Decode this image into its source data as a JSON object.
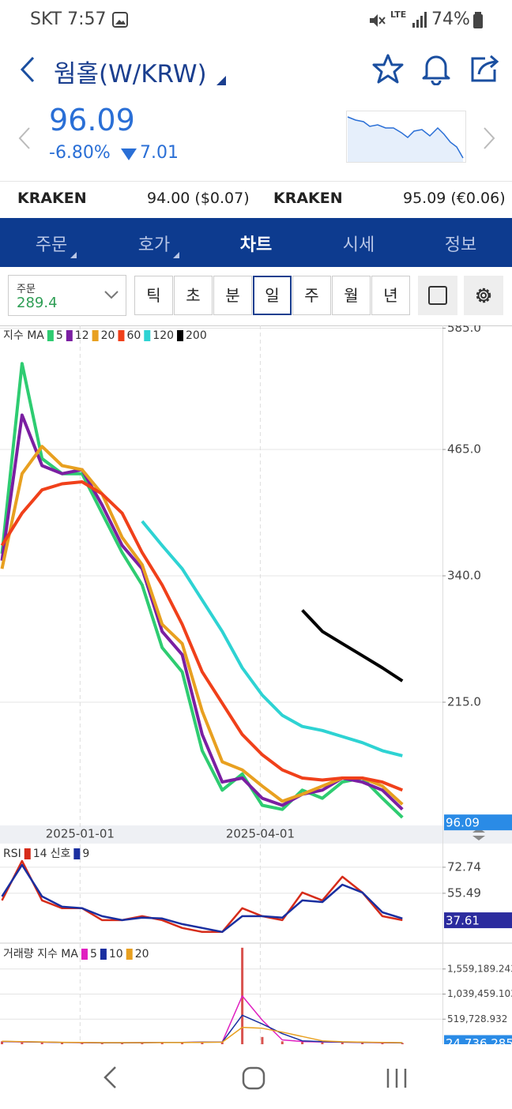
{
  "status_bar": {
    "carrier_time": "SKT 7:57",
    "network": "LTE",
    "battery": "74%"
  },
  "header": {
    "title": "웜홀(W/KRW)"
  },
  "quote": {
    "price": "96.09",
    "change_pct": "-6.80%",
    "change": "7.01"
  },
  "exchanges": [
    {
      "name": "KRAKEN",
      "price": "94.00 ($0.07)"
    },
    {
      "name": "KRAKEN",
      "price": "95.09 (€0.06)"
    }
  ],
  "tabs": [
    "주문",
    "호가",
    "차트",
    "시세",
    "정보"
  ],
  "toolbar": {
    "dropdown_label": "주문",
    "dropdown_value": "289.4",
    "periods": [
      "틱",
      "초",
      "분",
      "일",
      "주",
      "월",
      "년"
    ]
  },
  "chart_data": [
    {
      "type": "line",
      "title": "지수 MA",
      "x": [
        "2024-11-23",
        "2024-12-03",
        "2024-12-13",
        "2024-12-23",
        "2025-01-02",
        "2025-01-12",
        "2025-01-22",
        "2025-02-01",
        "2025-02-11",
        "2025-02-21",
        "2025-03-03",
        "2025-03-13",
        "2025-03-23",
        "2025-04-02",
        "2025-04-12",
        "2025-04-22",
        "2025-05-02",
        "2025-05-12",
        "2025-05-22",
        "2025-06-01",
        "2025-06-11"
      ],
      "xlim": [
        "2024-11-22",
        "2025-07-01"
      ],
      "xticks": [
        "2025-01-01",
        "2025-04-01"
      ],
      "ylim": [
        93.1,
        587.7
      ],
      "yticks": [
        {
          "value": 585,
          "label": "585.0"
        },
        {
          "value": 465,
          "label": "465.0"
        },
        {
          "value": 340,
          "label": "340.0"
        },
        {
          "value": 215,
          "label": "215.0"
        }
      ],
      "current_value": 96.09,
      "grid": true,
      "series": [
        {
          "name": "5",
          "color": "#2ecc71",
          "values": [
            362,
            550,
            456,
            441,
            441,
            402,
            363,
            331,
            269,
            245,
            167,
            128,
            144,
            113,
            109,
            128,
            120,
            136,
            140,
            120,
            101
          ]
        },
        {
          "name": "12",
          "color": "#7b1fa2",
          "values": [
            355,
            499,
            449,
            441,
            445,
            410,
            370,
            347,
            285,
            262,
            183,
            136,
            140,
            120,
            113,
            124,
            128,
            140,
            136,
            128,
            109
          ]
        },
        {
          "name": "20",
          "color": "#e8a020",
          "values": [
            347,
            441,
            468,
            449,
            445,
            421,
            378,
            351,
            292,
            273,
            206,
            156,
            148,
            132,
            117,
            124,
            132,
            140,
            140,
            132,
            114
          ]
        },
        {
          "name": "60",
          "color": "#f0401a",
          "values": [
            370,
            402,
            425,
            431,
            433,
            421,
            402,
            363,
            331,
            292,
            245,
            214,
            183,
            163,
            148,
            140,
            138,
            140,
            140,
            136,
            128
          ]
        },
        {
          "name": "120",
          "color": "#2ed3d3",
          "values": [
            null,
            null,
            null,
            null,
            null,
            null,
            null,
            394,
            370,
            347,
            316,
            285,
            249,
            222,
            202,
            191,
            187,
            181,
            175,
            167,
            162
          ]
        },
        {
          "name": "200",
          "color": "#000000",
          "values": [
            null,
            null,
            null,
            null,
            null,
            null,
            null,
            null,
            null,
            null,
            null,
            null,
            null,
            null,
            null,
            306,
            285,
            273,
            261,
            249,
            236
          ]
        }
      ]
    },
    {
      "type": "line",
      "x": [
        "2024-11-23",
        "2024-12-03",
        "2024-12-13",
        "2024-12-23",
        "2025-01-02",
        "2025-01-12",
        "2025-01-22",
        "2025-02-01",
        "2025-02-11",
        "2025-02-21",
        "2025-03-03",
        "2025-03-13",
        "2025-03-23",
        "2025-04-02",
        "2025-04-12",
        "2025-04-22",
        "2025-05-02",
        "2025-05-12",
        "2025-05-22",
        "2025-06-01",
        "2025-06-11"
      ],
      "xlim": [
        "2024-11-22",
        "2025-07-01"
      ],
      "ylim": [
        23,
        88.4
      ],
      "yticks": [
        72.74,
        55.49
      ],
      "current_value": 37.61,
      "grid": true,
      "series": [
        {
          "label": "RSI",
          "name": "14",
          "color": "#d62c1a",
          "values": [
            50.8,
            76.9,
            50.8,
            45.6,
            45.6,
            37.7,
            37.7,
            40.3,
            37.7,
            32.5,
            29.9,
            29.9,
            45.6,
            40.3,
            37.7,
            56,
            50.8,
            66.5,
            56,
            40.3,
            37.7
          ]
        },
        {
          "label": "신호",
          "name": "9",
          "color": "#1a2fa0",
          "values": [
            53.4,
            74.3,
            53.4,
            46.6,
            45.6,
            40.3,
            37.7,
            39.3,
            38.8,
            35.1,
            32.5,
            29.9,
            40.3,
            40.3,
            39.3,
            50.8,
            49.7,
            61.2,
            56,
            42.9,
            38.8
          ]
        }
      ]
    },
    {
      "type": "bar",
      "title": "거래량 지수 MA",
      "x": [
        "2024-11-23",
        "2024-12-03",
        "2024-12-13",
        "2024-12-23",
        "2025-01-02",
        "2025-01-12",
        "2025-01-22",
        "2025-02-01",
        "2025-02-11",
        "2025-02-21",
        "2025-03-03",
        "2025-03-13",
        "2025-03-23",
        "2025-04-02",
        "2025-04-12",
        "2025-04-22",
        "2025-05-02",
        "2025-05-12",
        "2025-05-22",
        "2025-06-01",
        "2025-06-11"
      ],
      "xlim": [
        "2024-11-22",
        "2025-07-01"
      ],
      "ylim": [
        0,
        2079000
      ],
      "yticks": [
        {
          "value": 1559189.243,
          "label": "1,559,189.243"
        },
        {
          "value": 1039459.103,
          "label": "1,039,459.103"
        },
        {
          "value": 519728.932,
          "label": "519,728.932"
        }
      ],
      "current_value": 24736.285,
      "current_label": "24,736.285",
      "grid": true,
      "color": "#d9534f",
      "values": [
        60000,
        45000,
        40000,
        35000,
        30000,
        28000,
        30000,
        32000,
        40000,
        35000,
        50000,
        45000,
        2000000,
        150000,
        60000,
        50000,
        45000,
        40000,
        35000,
        30000,
        24736
      ],
      "series": [
        {
          "name": "5",
          "color": "#e020c0",
          "values": [
            55000,
            48000,
            42000,
            36000,
            32000,
            29000,
            30000,
            33000,
            38000,
            36000,
            45000,
            46000,
            1000000,
            500000,
            90000,
            55000,
            48000,
            42000,
            36000,
            31000,
            28000
          ]
        },
        {
          "name": "10",
          "color": "#1a2fa0",
          "values": [
            58000,
            50000,
            45000,
            38000,
            34000,
            31000,
            31000,
            33000,
            36000,
            36000,
            42000,
            44000,
            600000,
            420000,
            220000,
            70000,
            52000,
            45000,
            40000,
            34000,
            30000
          ]
        },
        {
          "name": "20",
          "color": "#e8a020",
          "values": [
            60000,
            52000,
            47000,
            40000,
            36000,
            33000,
            32000,
            33000,
            35000,
            35000,
            40000,
            42000,
            350000,
            330000,
            250000,
            160000,
            70000,
            50000,
            43000,
            38000,
            33000
          ]
        }
      ]
    }
  ]
}
